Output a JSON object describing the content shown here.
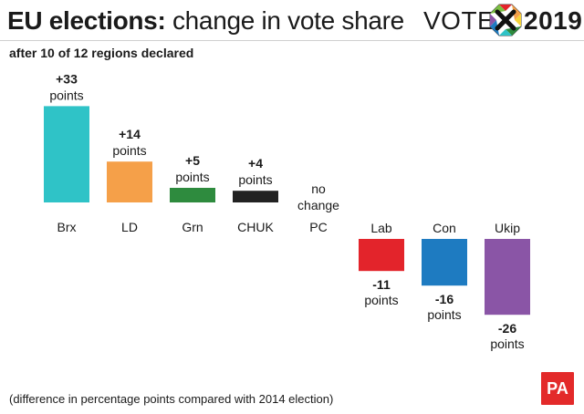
{
  "header": {
    "title_bold": "EU elections:",
    "title_rest": " change in vote share",
    "logo_word": "VOTE",
    "logo_year": "2019"
  },
  "subtitle": "after 10 of 12 regions declared",
  "footnote": "(difference in percentage points compared with 2014 election)",
  "badge": "PA",
  "chart_data": {
    "type": "bar",
    "categories": [
      "Brx",
      "LD",
      "Grn",
      "CHUK",
      "PC",
      "Lab",
      "Con",
      "Ukip"
    ],
    "values": [
      33,
      14,
      5,
      4,
      0,
      -11,
      -16,
      -26
    ],
    "value_labels": [
      "+33",
      "+14",
      "+5",
      "+4",
      "",
      "-11",
      "-16",
      "-26"
    ],
    "unit_labels": [
      "points",
      "points",
      "points",
      "points",
      "",
      "points",
      "points",
      "points"
    ],
    "zero_labels": [
      "no",
      "change"
    ],
    "colors": [
      "#2fc3c7",
      "#f5a049",
      "#2e8b3e",
      "#222222",
      "#ffffff",
      "#e3242b",
      "#1e7bc1",
      "#8a55a6"
    ],
    "title": "EU elections: change in vote share",
    "xlabel": "",
    "ylabel": "",
    "grid": false,
    "legend": "none"
  }
}
